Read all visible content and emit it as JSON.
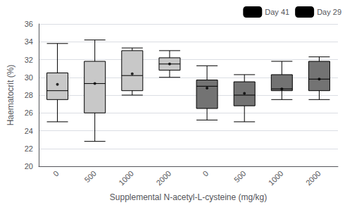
{
  "chart_data": {
    "type": "box",
    "xlabel": "Supplemental N-acetyl-L-cysteine (mg/kg)",
    "ylabel": "Haematocrit (%)",
    "categories": [
      "0",
      "500",
      "1000",
      "2000"
    ],
    "series": [
      {
        "name": "Day 29",
        "color": "#c8c8c8",
        "values": [
          {
            "whisker_low": 25.0,
            "q1": 27.5,
            "median": 28.5,
            "q3": 30.5,
            "whisker_high": 33.8,
            "mean": 29.2
          },
          {
            "whisker_low": 22.8,
            "q1": 26.0,
            "median": 29.3,
            "q3": 31.8,
            "whisker_high": 34.2,
            "mean": 29.3
          },
          {
            "whisker_low": 28.0,
            "q1": 28.5,
            "median": 30.2,
            "q3": 33.0,
            "whisker_high": 33.3,
            "mean": 30.4
          },
          {
            "whisker_low": 30.0,
            "q1": 30.8,
            "median": 31.5,
            "q3": 32.2,
            "whisker_high": 33.0,
            "mean": 31.5
          }
        ]
      },
      {
        "name": "Day 41",
        "color": "#737373",
        "values": [
          {
            "whisker_low": 25.2,
            "q1": 26.5,
            "median": 29.0,
            "q3": 29.7,
            "whisker_high": 31.3,
            "mean": 28.8
          },
          {
            "whisker_low": 25.0,
            "q1": 26.8,
            "median": 28.0,
            "q3": 29.5,
            "whisker_high": 30.3,
            "mean": 28.2
          },
          {
            "whisker_low": 27.5,
            "q1": 28.5,
            "median": 28.7,
            "q3": 30.3,
            "whisker_high": 31.8,
            "mean": 28.7
          },
          {
            "whisker_low": 27.5,
            "q1": 28.5,
            "median": 29.8,
            "q3": 31.8,
            "whisker_high": 32.3,
            "mean": 29.8
          }
        ]
      }
    ],
    "ylim": [
      20,
      36
    ],
    "yticks": [
      20,
      22,
      24,
      26,
      28,
      30,
      32,
      34,
      36
    ],
    "legend": "upper right"
  }
}
